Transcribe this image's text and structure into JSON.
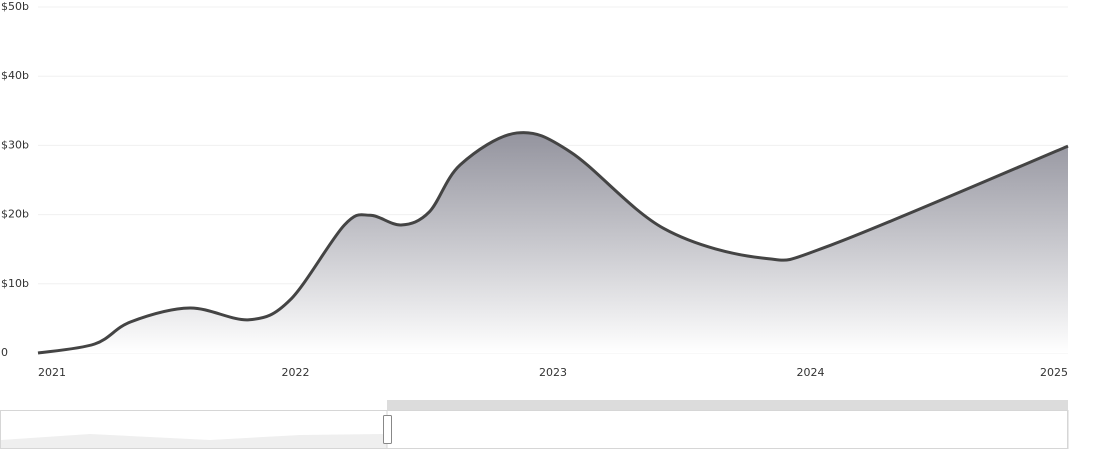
{
  "chart_data": {
    "type": "area",
    "x": [
      2021.0,
      2021.22,
      2021.36,
      2021.59,
      2021.82,
      2021.98,
      2022.19,
      2022.29,
      2022.41,
      2022.52,
      2022.64,
      2022.86,
      2023.07,
      2023.43,
      2023.82,
      2024.08,
      2025.0
    ],
    "values": [
      0,
      1.3,
      4.5,
      6.5,
      4.8,
      7.7,
      18.5,
      19.9,
      18.5,
      20.4,
      27.2,
      31.8,
      29,
      18,
      13.7,
      15.6,
      29.9
    ],
    "color": "#444444",
    "xlim": [
      2021,
      2025
    ],
    "xticks": [
      2021,
      2022,
      2023,
      2024,
      2025
    ],
    "ylim": [
      0,
      50
    ],
    "yticks": [
      0,
      {
        "value": 10,
        "label": "$10b"
      },
      {
        "value": 20,
        "label": "$20b"
      },
      {
        "value": 30,
        "label": "$30b"
      },
      {
        "value": 40,
        "label": "$40b"
      },
      {
        "value": 50,
        "label": "$50b"
      }
    ],
    "grid": true
  }
}
